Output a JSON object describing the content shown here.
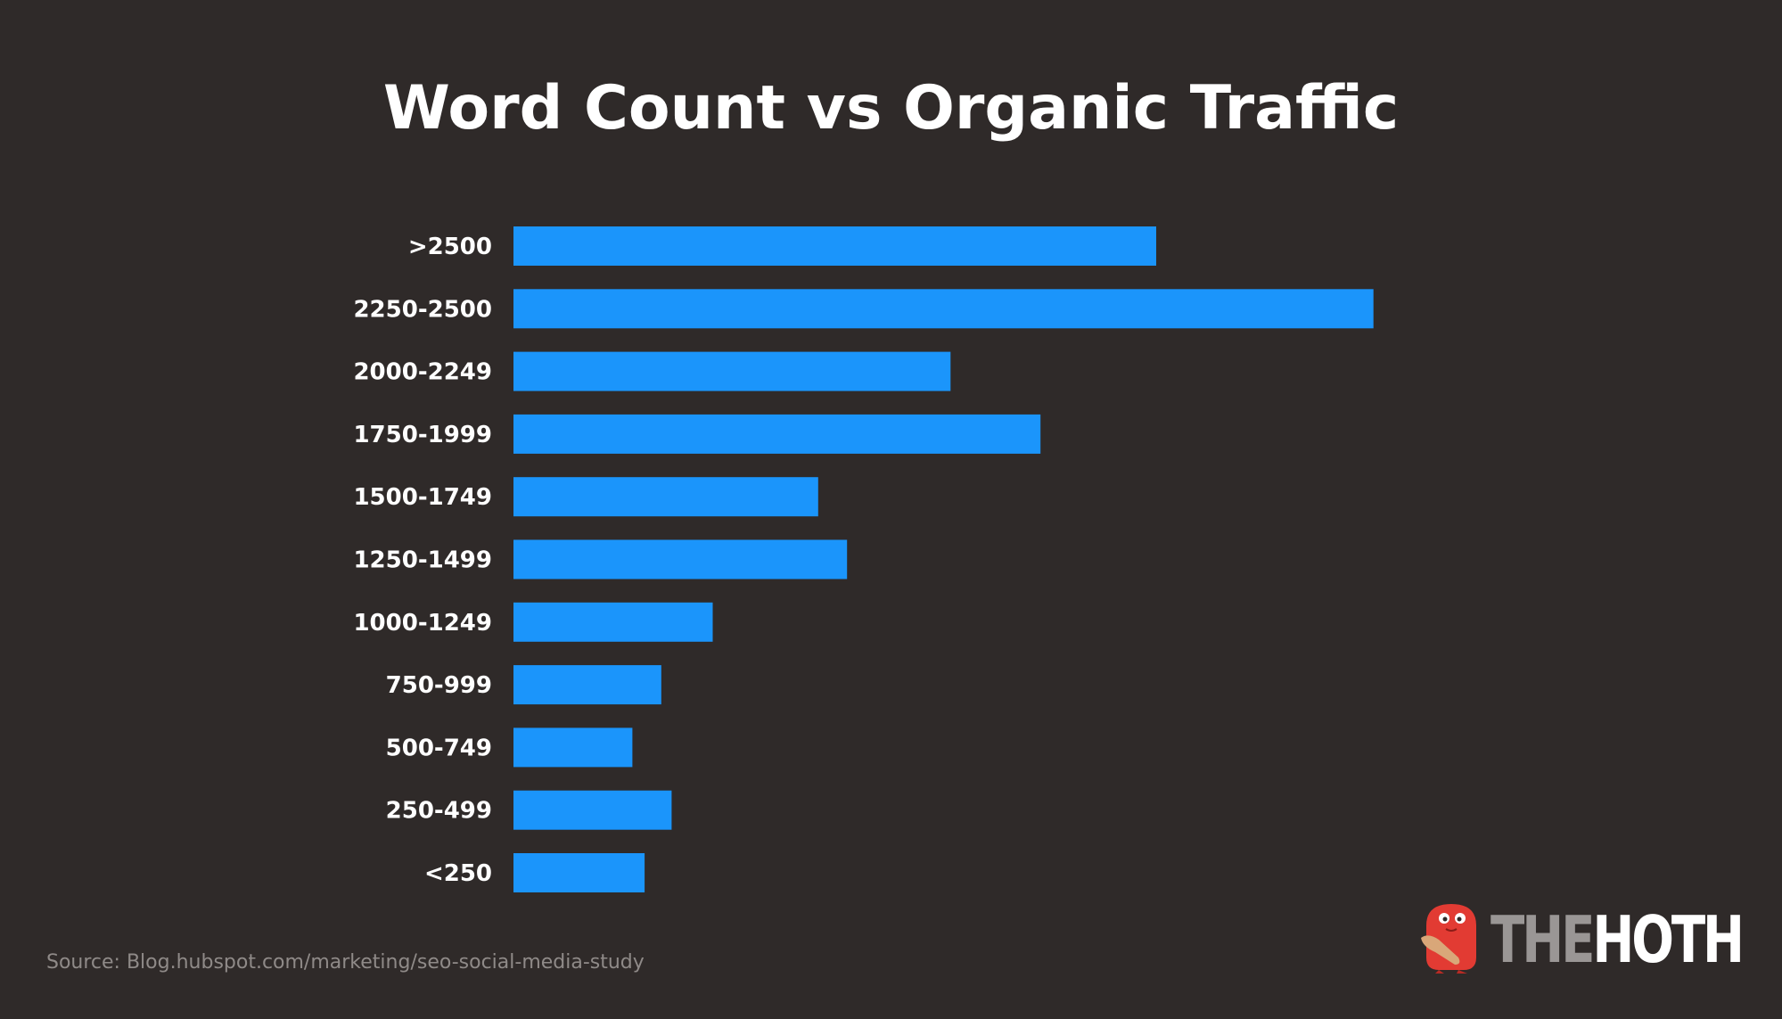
{
  "chart_data": {
    "type": "bar",
    "orientation": "horizontal",
    "title": "Word Count vs Organic Traffic",
    "xlabel": "",
    "ylabel": "",
    "categories": [
      ">2500",
      "2250-2500",
      "2000-2249",
      "1750-1999",
      "1500-1749",
      "1250-1499",
      "1000-1249",
      "750-999",
      "500-749",
      "250-499",
      "<250"
    ],
    "values": [
      100,
      133.8,
      68,
      82,
      47.4,
      51.9,
      31,
      23,
      18.5,
      24.6,
      20.4
    ],
    "xlim": [
      0,
      140
    ],
    "grid": false,
    "legend": "none",
    "bar_color": "#1b95fb"
  },
  "source": "Source: Blog.hubspot.com/marketing/seo-social-media-study",
  "logo": {
    "name": "THEHOTH",
    "part1": "THE",
    "part2": "HOTH",
    "mascot_icon": "red-monster-mascot-icon",
    "mascot_color": "#e23b33"
  },
  "colors": {
    "background": "#2f2a29",
    "title": "#ffffff",
    "bars": "#1b95fb",
    "source_text": "#8f8a88"
  }
}
